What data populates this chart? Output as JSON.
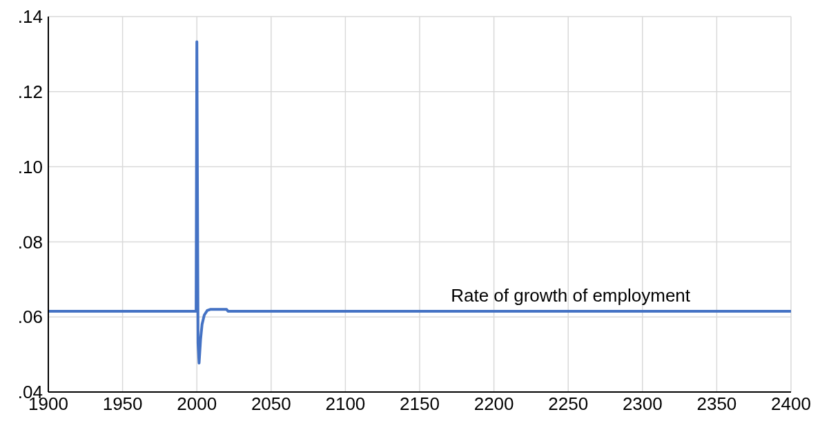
{
  "chart_data": {
    "type": "line",
    "xlim": [
      1900,
      2400
    ],
    "xticks": [
      1900,
      1950,
      2000,
      2050,
      2100,
      2150,
      2200,
      2250,
      2300,
      2350,
      2400
    ],
    "ylim": [
      0.04,
      0.14
    ],
    "yticks": [
      {
        "value": 0.04,
        "label": ".04"
      },
      {
        "value": 0.06,
        "label": ".06"
      },
      {
        "value": 0.08,
        "label": ".08"
      },
      {
        "value": 0.1,
        "label": ".10"
      },
      {
        "value": 0.12,
        "label": ".12"
      },
      {
        "value": 0.14,
        "label": ".14"
      }
    ],
    "grid": true,
    "marker": "none",
    "line_style": "solid",
    "series": [
      {
        "name": "Rate of growth of employment",
        "color": "#4472c4",
        "x": [
          1900,
          1999.5,
          2000,
          2000.8,
          2001.5,
          2002.5,
          2003.5,
          2005,
          2007,
          2009,
          2020,
          2021,
          2400
        ],
        "values": [
          0.0615,
          0.0615,
          0.1333,
          0.053,
          0.0477,
          0.054,
          0.058,
          0.0605,
          0.0617,
          0.062,
          0.062,
          0.0615,
          0.0615
        ]
      }
    ]
  }
}
